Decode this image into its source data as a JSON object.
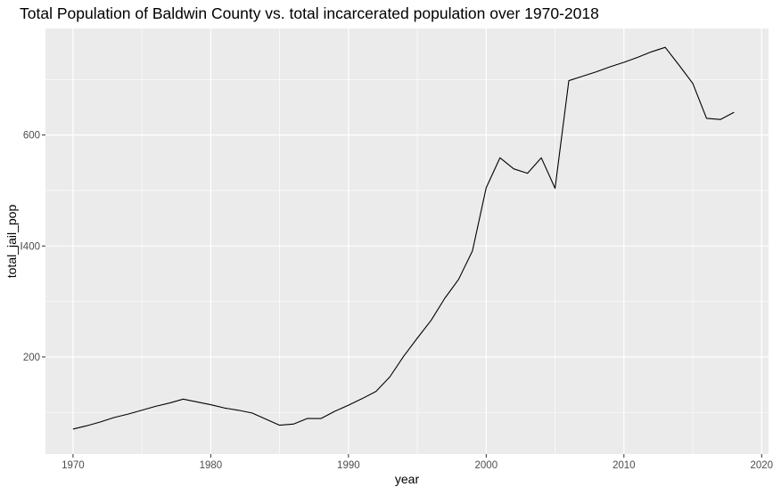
{
  "chart_data": {
    "type": "line",
    "title": "Total Population of Baldwin County vs. total incarcerated population over 1970-2018",
    "xlabel": "year",
    "ylabel": "total_jail_pop",
    "xlim": [
      1968,
      2020.5
    ],
    "ylim": [
      25,
      792
    ],
    "x_ticks": [
      1970,
      1980,
      1990,
      2000,
      2010,
      2020
    ],
    "y_ticks": [
      200,
      400,
      600
    ],
    "x_tick_labels": [
      "1970",
      "1980",
      "1990",
      "2000",
      "2010",
      "2020"
    ],
    "y_tick_labels": [
      "200",
      "Ⅰ400",
      "600"
    ],
    "grid": true,
    "legend": "none",
    "panel_background": "#ebebeb",
    "grid_color": "#ffffff",
    "line_color": "#000000",
    "series": [
      {
        "x": [
          1970,
          1971,
          1972,
          1973,
          1974,
          1975,
          1976,
          1977,
          1978,
          1979,
          1980,
          1981,
          1982,
          1983,
          1984,
          1985,
          1986,
          1987,
          1988,
          1989,
          1990,
          1991,
          1992,
          1993,
          1994,
          1995,
          1996,
          1997,
          1998,
          1999,
          2000,
          2001,
          2002,
          2003,
          2004,
          2005,
          2006,
          2007,
          2008,
          2009,
          2010,
          2011,
          2012,
          2013,
          2014,
          2015,
          2016,
          2017,
          2018
        ],
        "y": [
          70,
          76,
          83,
          91,
          97,
          104,
          111,
          117,
          124,
          119,
          114,
          108,
          104,
          99,
          88,
          77,
          79,
          89,
          89,
          102,
          113,
          125,
          138,
          164,
          201,
          234,
          266,
          306,
          340,
          391,
          505,
          559,
          539,
          531,
          559,
          504,
          698,
          706,
          714,
          723,
          731,
          740,
          750,
          758,
          726,
          693,
          630,
          628,
          641
        ]
      }
    ]
  }
}
